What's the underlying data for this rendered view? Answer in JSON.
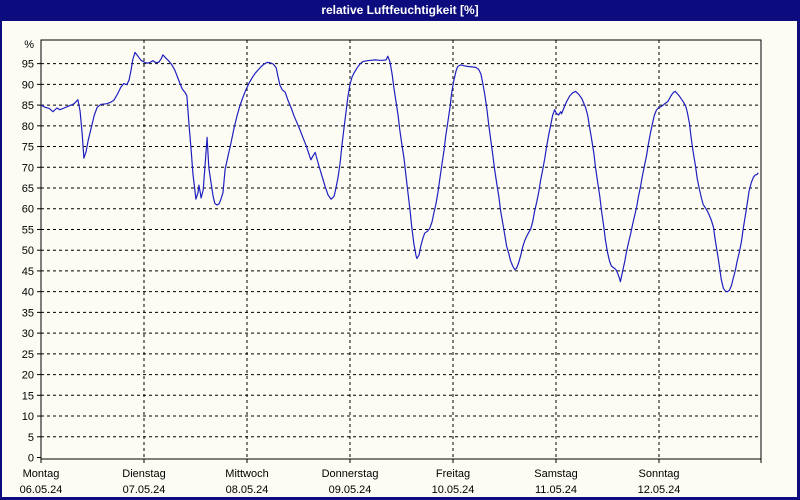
{
  "window": {
    "title": "relative Luftfeuchtigkeit [%]"
  },
  "colors": {
    "frame": "#0c0c7e",
    "title_text": "#ffffff",
    "panel_background": "#fcfcf4",
    "line": "#2020c0",
    "grid": "#000000",
    "axis_text": "#000000"
  },
  "chart_data": {
    "type": "line",
    "title": "relative Luftfeuchtigkeit [%]",
    "ylabel": "%",
    "ylim": [
      0,
      100.7
    ],
    "ytick_min": 0,
    "ytick_max": 95,
    "ytick_step": 5,
    "xlim_hours": [
      0,
      168
    ],
    "grid": "dashed",
    "legend": "none",
    "x_days": [
      {
        "label": "Montag",
        "date": "06.05.24"
      },
      {
        "label": "Dienstag",
        "date": "07.05.24"
      },
      {
        "label": "Mittwoch",
        "date": "08.05.24"
      },
      {
        "label": "Donnerstag",
        "date": "09.05.24"
      },
      {
        "label": "Freitag",
        "date": "10.05.24"
      },
      {
        "label": "Samstag",
        "date": "11.05.24"
      },
      {
        "label": "Sonntag",
        "date": "12.05.24"
      }
    ],
    "series": [
      {
        "name": "relative Luftfeuchtigkeit [%]",
        "color": "#2020c0",
        "points": [
          [
            0,
            85
          ],
          [
            0.9,
            84.5
          ],
          [
            1.9,
            84.2
          ],
          [
            2.8,
            83.4
          ],
          [
            3.7,
            84.3
          ],
          [
            4.4,
            83.9
          ],
          [
            5.4,
            84.3
          ],
          [
            6.5,
            84.8
          ],
          [
            7.7,
            85.3
          ],
          [
            8.6,
            86.3
          ],
          [
            9.1,
            83.5
          ],
          [
            9.6,
            78
          ],
          [
            10,
            72.2
          ],
          [
            10.5,
            73.8
          ],
          [
            11,
            76.5
          ],
          [
            11.7,
            79.5
          ],
          [
            12.4,
            82.5
          ],
          [
            13.1,
            84.5
          ],
          [
            14,
            85.2
          ],
          [
            15.2,
            85.3
          ],
          [
            16.1,
            85.6
          ],
          [
            17,
            86.2
          ],
          [
            17.9,
            87.8
          ],
          [
            18.6,
            89.3
          ],
          [
            19.3,
            90.2
          ],
          [
            20,
            89.9
          ],
          [
            20.5,
            91
          ],
          [
            21,
            93.5
          ],
          [
            21.4,
            96
          ],
          [
            21.9,
            97.7
          ],
          [
            22.6,
            96.8
          ],
          [
            23.3,
            95.8
          ],
          [
            24,
            95.4
          ],
          [
            24.7,
            95.1
          ],
          [
            25.4,
            95.3
          ],
          [
            26.1,
            95.7
          ],
          [
            26.8,
            95.2
          ],
          [
            27.5,
            95.4
          ],
          [
            28,
            96.2
          ],
          [
            28.4,
            97.1
          ],
          [
            29.1,
            96.3
          ],
          [
            29.8,
            95.6
          ],
          [
            30.5,
            94.7
          ],
          [
            31.2,
            93.4
          ],
          [
            31.9,
            91.5
          ],
          [
            32.4,
            90.2
          ],
          [
            32.9,
            88.9
          ],
          [
            33.6,
            88
          ],
          [
            34,
            87.2
          ],
          [
            34.5,
            80
          ],
          [
            35,
            74
          ],
          [
            35.4,
            68.5
          ],
          [
            35.9,
            64
          ],
          [
            36.1,
            62.3
          ],
          [
            36.6,
            64
          ],
          [
            36.8,
            65.7
          ],
          [
            37.1,
            64
          ],
          [
            37.3,
            62.6
          ],
          [
            37.8,
            64.5
          ],
          [
            38.2,
            70
          ],
          [
            38.7,
            77.2
          ],
          [
            39.1,
            70
          ],
          [
            39.6,
            66.5
          ],
          [
            40.1,
            63
          ],
          [
            40.5,
            61.3
          ],
          [
            41,
            60.9
          ],
          [
            41.5,
            61.2
          ],
          [
            41.9,
            62.2
          ],
          [
            42.4,
            63.9
          ],
          [
            42.9,
            69.5
          ],
          [
            43.6,
            72.8
          ],
          [
            44.3,
            76
          ],
          [
            45,
            79.5
          ],
          [
            45.7,
            82.5
          ],
          [
            46.4,
            85
          ],
          [
            47.1,
            87
          ],
          [
            47.8,
            88.8
          ],
          [
            48.5,
            90.3
          ],
          [
            49.2,
            91.6
          ],
          [
            49.9,
            92.7
          ],
          [
            50.6,
            93.5
          ],
          [
            51.3,
            94.3
          ],
          [
            52,
            94.9
          ],
          [
            52.7,
            95.3
          ],
          [
            53.4,
            95.2
          ],
          [
            54.1,
            94.9
          ],
          [
            54.8,
            94
          ],
          [
            55.2,
            92
          ],
          [
            55.7,
            89.8
          ],
          [
            56.2,
            88.7
          ],
          [
            56.9,
            88.1
          ],
          [
            57.6,
            86
          ],
          [
            58.3,
            84.3
          ],
          [
            59,
            82.3
          ],
          [
            59.7,
            80.6
          ],
          [
            60.4,
            78.9
          ],
          [
            61.1,
            77
          ],
          [
            61.8,
            75.2
          ],
          [
            62.5,
            73
          ],
          [
            62.9,
            71.8
          ],
          [
            63.4,
            72.8
          ],
          [
            63.9,
            73.6
          ],
          [
            64.3,
            72
          ],
          [
            64.8,
            70.2
          ],
          [
            65.5,
            67.8
          ],
          [
            66.2,
            65.4
          ],
          [
            66.9,
            63.3
          ],
          [
            67.6,
            62.3
          ],
          [
            68.3,
            63
          ],
          [
            68.7,
            64.8
          ],
          [
            69.2,
            67.5
          ],
          [
            69.7,
            71
          ],
          [
            70.1,
            75
          ],
          [
            70.6,
            79.5
          ],
          [
            71.1,
            83.5
          ],
          [
            71.5,
            87
          ],
          [
            72,
            90
          ],
          [
            72.5,
            91.8
          ],
          [
            72.9,
            92.7
          ],
          [
            73.6,
            93.9
          ],
          [
            74.3,
            94.9
          ],
          [
            75,
            95.5
          ],
          [
            76,
            95.7
          ],
          [
            76.9,
            95.8
          ],
          [
            77.8,
            95.9
          ],
          [
            78.8,
            95.8
          ],
          [
            79.7,
            95.8
          ],
          [
            80.4,
            95.9
          ],
          [
            80.8,
            96.8
          ],
          [
            81.3,
            95.5
          ],
          [
            81.8,
            92.5
          ],
          [
            82.2,
            89.3
          ],
          [
            82.7,
            86
          ],
          [
            83.2,
            82.5
          ],
          [
            83.6,
            79
          ],
          [
            84.1,
            75.5
          ],
          [
            84.6,
            72
          ],
          [
            85,
            68.3
          ],
          [
            85.5,
            64
          ],
          [
            86,
            59.5
          ],
          [
            86.4,
            55.5
          ],
          [
            86.9,
            51.5
          ],
          [
            87.4,
            48.6
          ],
          [
            87.6,
            48
          ],
          [
            88.1,
            48.9
          ],
          [
            88.5,
            51
          ],
          [
            89,
            53
          ],
          [
            89.4,
            54.1
          ],
          [
            90.2,
            54.7
          ],
          [
            90.6,
            55.3
          ],
          [
            91.1,
            56.8
          ],
          [
            91.5,
            58.8
          ],
          [
            92,
            61
          ],
          [
            92.5,
            64
          ],
          [
            92.9,
            67
          ],
          [
            93.4,
            70.5
          ],
          [
            93.9,
            74
          ],
          [
            94.3,
            77.5
          ],
          [
            94.8,
            81
          ],
          [
            95.3,
            84.5
          ],
          [
            95.7,
            88
          ],
          [
            96.2,
            91
          ],
          [
            96.7,
            93.2
          ],
          [
            97.1,
            94.3
          ],
          [
            97.8,
            94.7
          ],
          [
            98.5,
            94.5
          ],
          [
            99.5,
            94.3
          ],
          [
            100.4,
            94.2
          ],
          [
            101.3,
            94.1
          ],
          [
            102,
            93.6
          ],
          [
            102.5,
            92.5
          ],
          [
            102.9,
            90.5
          ],
          [
            103.4,
            87.5
          ],
          [
            103.9,
            84
          ],
          [
            104.3,
            80.5
          ],
          [
            104.8,
            76.5
          ],
          [
            105.3,
            72.8
          ],
          [
            105.7,
            69.5
          ],
          [
            106.2,
            66
          ],
          [
            106.7,
            62.8
          ],
          [
            107.1,
            59.5
          ],
          [
            107.6,
            56.5
          ],
          [
            108.1,
            53.5
          ],
          [
            108.5,
            51
          ],
          [
            109,
            49.2
          ],
          [
            109.4,
            47.5
          ],
          [
            109.9,
            46.2
          ],
          [
            110.4,
            45.3
          ],
          [
            110.8,
            45.6
          ],
          [
            111.3,
            47
          ],
          [
            111.8,
            48.8
          ],
          [
            112.2,
            50.6
          ],
          [
            112.7,
            52.3
          ],
          [
            113.2,
            53.4
          ],
          [
            113.6,
            54.2
          ],
          [
            114.1,
            55.1
          ],
          [
            114.6,
            57
          ],
          [
            115,
            59.3
          ],
          [
            115.5,
            61.6
          ],
          [
            116,
            64.1
          ],
          [
            116.4,
            66.7
          ],
          [
            116.9,
            69.4
          ],
          [
            117.4,
            72.2
          ],
          [
            117.8,
            75
          ],
          [
            118.3,
            77.8
          ],
          [
            118.8,
            80.3
          ],
          [
            119.2,
            82.5
          ],
          [
            119.7,
            83.9
          ],
          [
            120.1,
            83
          ],
          [
            120.6,
            82.6
          ],
          [
            121.1,
            83.4
          ],
          [
            121.3,
            82.9
          ],
          [
            121.8,
            84.2
          ],
          [
            122.5,
            85.9
          ],
          [
            123.2,
            87.2
          ],
          [
            123.9,
            88
          ],
          [
            124.6,
            88.3
          ],
          [
            125.3,
            87.6
          ],
          [
            126,
            86.6
          ],
          [
            126.4,
            85.6
          ],
          [
            126.9,
            84.4
          ],
          [
            127.4,
            82.4
          ],
          [
            127.8,
            79.8
          ],
          [
            128.3,
            76.8
          ],
          [
            128.8,
            73.5
          ],
          [
            129.2,
            70
          ],
          [
            129.7,
            66.5
          ],
          [
            130.2,
            63
          ],
          [
            130.6,
            59.5
          ],
          [
            131.1,
            56
          ],
          [
            131.5,
            52.5
          ],
          [
            132,
            49.5
          ],
          [
            132.5,
            47.3
          ],
          [
            132.9,
            46.2
          ],
          [
            133.4,
            45.8
          ],
          [
            133.9,
            45.4
          ],
          [
            134.3,
            44.6
          ],
          [
            134.8,
            43.2
          ],
          [
            135,
            42.4
          ],
          [
            135.5,
            44.8
          ],
          [
            136,
            47.2
          ],
          [
            136.4,
            49.5
          ],
          [
            136.9,
            51.8
          ],
          [
            137.4,
            54
          ],
          [
            137.8,
            56
          ],
          [
            138.3,
            58.2
          ],
          [
            138.8,
            60.5
          ],
          [
            139.2,
            62.9
          ],
          [
            139.7,
            65.3
          ],
          [
            140.1,
            67.8
          ],
          [
            140.6,
            70.3
          ],
          [
            141.1,
            72.9
          ],
          [
            141.5,
            75.5
          ],
          [
            142,
            78.2
          ],
          [
            142.5,
            80.7
          ],
          [
            142.9,
            82.5
          ],
          [
            143.4,
            83.8
          ],
          [
            143.9,
            84.4
          ],
          [
            144.6,
            84.7
          ],
          [
            145.3,
            85.3
          ],
          [
            146,
            85.8
          ],
          [
            146.4,
            86.5
          ],
          [
            146.9,
            87.4
          ],
          [
            147.4,
            88.1
          ],
          [
            147.8,
            88.3
          ],
          [
            148.3,
            87.7
          ],
          [
            148.8,
            87.1
          ],
          [
            149.2,
            86.5
          ],
          [
            149.7,
            85.7
          ],
          [
            150.2,
            84.8
          ],
          [
            150.6,
            83.3
          ],
          [
            151.1,
            80.5
          ],
          [
            151.5,
            77
          ],
          [
            152,
            73.5
          ],
          [
            152.5,
            70.3
          ],
          [
            152.9,
            67.3
          ],
          [
            153.4,
            64.8
          ],
          [
            153.9,
            62.5
          ],
          [
            154.3,
            61
          ],
          [
            154.8,
            60.2
          ],
          [
            155.3,
            59.4
          ],
          [
            155.7,
            58.5
          ],
          [
            156.2,
            57.2
          ],
          [
            156.7,
            55.5
          ],
          [
            157.1,
            52.5
          ],
          [
            157.6,
            49.3
          ],
          [
            158.1,
            46
          ],
          [
            158.5,
            43
          ],
          [
            159,
            40.8
          ],
          [
            159.5,
            40.1
          ],
          [
            159.9,
            40
          ],
          [
            160.4,
            40.3
          ],
          [
            160.9,
            41.5
          ],
          [
            161.3,
            43.2
          ],
          [
            161.8,
            45.2
          ],
          [
            162.2,
            47.3
          ],
          [
            162.7,
            49.5
          ],
          [
            163.2,
            52
          ],
          [
            163.6,
            55
          ],
          [
            164.1,
            58.3
          ],
          [
            164.6,
            61.5
          ],
          [
            165,
            64.3
          ],
          [
            165.5,
            66.3
          ],
          [
            166,
            67.6
          ],
          [
            166.4,
            68.1
          ],
          [
            166.9,
            68.3
          ],
          [
            167.1,
            68.7
          ]
        ]
      }
    ]
  }
}
